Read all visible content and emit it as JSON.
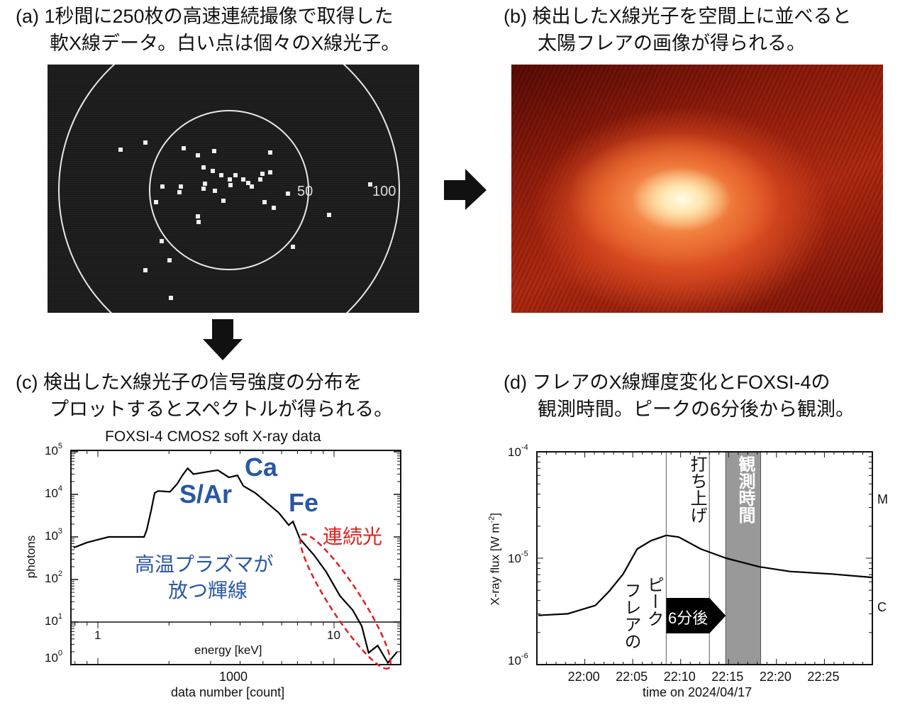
{
  "panel_a": {
    "caption_line1": "(a) 1秒間に250枚の高速連続撮像で取得した",
    "caption_line2": "軟X線データ。白い点は個々のX線光子。",
    "ring_labels": [
      "50",
      "100"
    ]
  },
  "panel_b": {
    "caption_line1": "(b) 検出したX線光子を空間上に並べると",
    "caption_line2": "太陽フレアの画像が得られる。"
  },
  "panel_c": {
    "caption_line1": "(c) 検出したX線光子の信号強度の分布を",
    "caption_line2": "プロットするとスペクトルが得られる。"
  },
  "panel_d": {
    "caption_line1": "(d) フレアのX線輝度変化とFOXSI-4の",
    "caption_line2": "観測時間。ピークの6分後から観測。"
  },
  "colors": {
    "annotation_blue": "#2a56a6",
    "annotation_red": "#e02020",
    "band_gray": "#999999"
  },
  "chart_data": [
    {
      "type": "line",
      "title": "FOXSI-4 CMOS2 soft X-ray data",
      "ylabel": "photons",
      "xlabel": "data number [count]",
      "x_tick_labels": [
        "1000"
      ],
      "secondary_xlabel": "energy [keV]",
      "secondary_x_tick_labels": [
        "1",
        "10"
      ],
      "y_scale": "log",
      "ylim": [
        1,
        100000
      ],
      "xlim_energy_keV": [
        0.77,
        19
      ],
      "y_tick_labels": [
        {
          "base": "10",
          "exp": "0"
        },
        {
          "base": "10",
          "exp": "1"
        },
        {
          "base": "10",
          "exp": "2"
        },
        {
          "base": "10",
          "exp": "3"
        },
        {
          "base": "10",
          "exp": "4"
        },
        {
          "base": "10",
          "exp": "5"
        }
      ],
      "series": [
        {
          "name": "spectrum",
          "energy_keV": [
            0.79,
            0.9,
            1.11,
            1.57,
            1.61,
            1.68,
            1.74,
            1.8,
            2.02,
            2.17,
            2.28,
            2.4,
            2.54,
            2.92,
            3.22,
            3.59,
            3.9,
            4.13,
            4.64,
            5.83,
            6.43,
            6.7,
            7.18,
            8.24,
            9.27,
            10.6,
            12.0,
            13.1,
            14.0,
            15.3,
            16.9,
            18.5
          ],
          "photons": [
            560,
            740,
            1000,
            1000,
            1470,
            4100,
            10800,
            12000,
            11500,
            17800,
            28000,
            41000,
            30000,
            34000,
            37000,
            25000,
            28000,
            15800,
            10800,
            3700,
            1900,
            2300,
            890,
            370,
            150,
            41,
            19,
            8,
            1.9,
            2.8,
            1.1,
            2
          ]
        }
      ],
      "annotations": {
        "ca": "Ca",
        "s_ar": "S/Ar",
        "fe": "Fe",
        "continuum": "連続光",
        "lines_1": "高温プラズマが",
        "lines_2": "放つ輝線"
      }
    },
    {
      "type": "line",
      "ylabel": "X-ray flux [W m",
      "ylabel_exp": "-2",
      "ylabel_close": "]",
      "xlabel": "time on 2024/04/17",
      "y_scale": "log",
      "ylim": [
        1e-06,
        0.0001
      ],
      "xlim_minutes_after_2200": [
        -5,
        30
      ],
      "x_tick_labels": [
        "22:00",
        "22:05",
        "22:10",
        "22:15",
        "22:20",
        "22:25"
      ],
      "x_tick_minutes": [
        0,
        5,
        10,
        15,
        20,
        25
      ],
      "y_tick_labels": [
        {
          "base": "10",
          "exp": "-6"
        },
        {
          "base": "10",
          "exp": "-5"
        },
        {
          "base": "10",
          "exp": "-4"
        }
      ],
      "class_labels": [
        "M",
        "C"
      ],
      "series": [
        {
          "name": "GOES X-ray flux",
          "minutes_after_2200": [
            -4.85,
            -1.8,
            1.1,
            2.55,
            4.0,
            5.46,
            6.9,
            8.5,
            9.8,
            12.1,
            14.75,
            18.2,
            21.4,
            25.8,
            30
          ],
          "flux": [
            2.9e-06,
            3e-06,
            3.6e-06,
            4.9e-06,
            7.1e-06,
            1.22e-05,
            1.46e-05,
            1.64e-05,
            1.58e-05,
            1.22e-05,
            1e-05,
            8.3e-06,
            7.5e-06,
            7.1e-06,
            6.6e-06
          ]
        }
      ],
      "markers": {
        "peak_minute": 8.5,
        "launch_minute": 13.0,
        "observation_start": 14.7,
        "observation_end": 18.35
      },
      "annotations": {
        "launch": "打ち上げ",
        "observation": "観測時間",
        "peak_1": "フレアの",
        "peak_2": "ピーク",
        "delay": "6分後"
      }
    }
  ]
}
